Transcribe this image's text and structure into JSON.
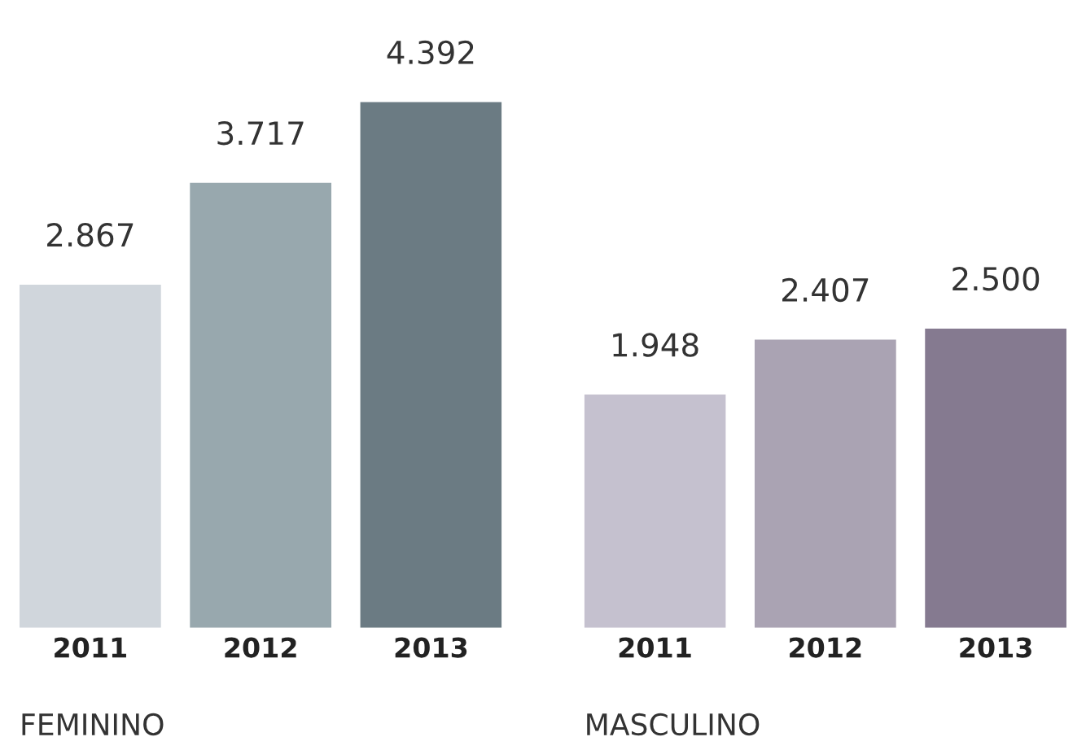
{
  "chart_data": [
    {
      "type": "bar",
      "xlabel": "FEMININO",
      "categories": [
        "2011",
        "2012",
        "2013"
      ],
      "values": [
        2867,
        3717,
        4392
      ],
      "colors": [
        "#d0d6dc",
        "#98a8ae",
        "#6b7b83"
      ],
      "value_labels": [
        "2.867",
        "3.717",
        "4.392"
      ],
      "grid": false,
      "legend": false
    },
    {
      "type": "bar",
      "xlabel": "MASCULINO",
      "categories": [
        "2011",
        "2012",
        "2013"
      ],
      "values": [
        1948,
        2407,
        2500
      ],
      "colors": [
        "#c5c1cf",
        "#aaa3b3",
        "#857a90"
      ],
      "value_labels": [
        "1.948",
        "2.407",
        "2.500"
      ],
      "grid": false,
      "legend": false
    }
  ]
}
